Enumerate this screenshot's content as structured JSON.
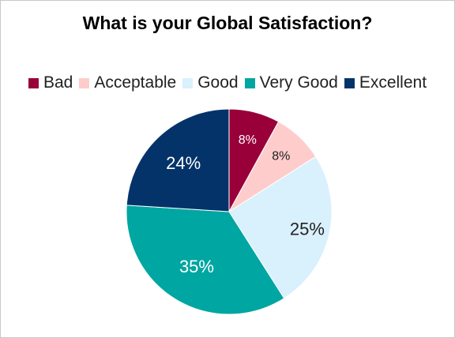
{
  "chart_data": {
    "type": "pie",
    "title": "What is your Global Satisfaction?",
    "legend_position": "top",
    "slices": [
      {
        "label": "Bad",
        "value": 8,
        "display": "8%",
        "color": "#99003a",
        "text_color": "#ffffff"
      },
      {
        "label": "Acceptable",
        "value": 8,
        "display": "8%",
        "color": "#ffcccc",
        "text_color": "#222222"
      },
      {
        "label": "Good",
        "value": 25,
        "display": "25%",
        "color": "#d9f0fd",
        "text_color": "#222222"
      },
      {
        "label": "Very Good",
        "value": 35,
        "display": "35%",
        "color": "#00a6a1",
        "text_color": "#ffffff"
      },
      {
        "label": "Excellent",
        "value": 24,
        "display": "24%",
        "color": "#04336a",
        "text_color": "#ffffff"
      }
    ]
  }
}
